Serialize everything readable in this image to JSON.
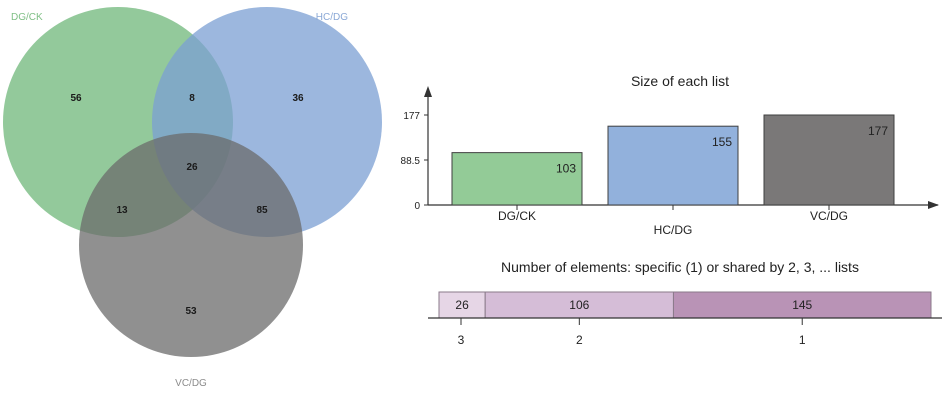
{
  "venn": {
    "sets": [
      {
        "name": "DG/CK",
        "size": 103,
        "color": "#6fb77a",
        "label_color": "#7fbf85"
      },
      {
        "name": "HC/DG",
        "size": 155,
        "color": "#7b9fd3",
        "label_color": "#8aa8d6"
      },
      {
        "name": "VC/DG",
        "size": 177,
        "color": "#6b6b6b",
        "label_color": "#8c8c8c"
      }
    ],
    "regions": [
      {
        "sets": [
          "DG/CK"
        ],
        "value": 56
      },
      {
        "sets": [
          "HC/DG"
        ],
        "value": 36
      },
      {
        "sets": [
          "VC/DG"
        ],
        "value": 53
      },
      {
        "sets": [
          "DG/CK",
          "HC/DG"
        ],
        "value": 8
      },
      {
        "sets": [
          "DG/CK",
          "VC/DG"
        ],
        "value": 13
      },
      {
        "sets": [
          "HC/DG",
          "VC/DG"
        ],
        "value": 85
      },
      {
        "sets": [
          "DG/CK",
          "HC/DG",
          "VC/DG"
        ],
        "value": 26
      }
    ]
  },
  "chart_data": [
    {
      "type": "bar",
      "title": "Size of each list",
      "categories": [
        "DG/CK",
        "HC/DG",
        "VC/DG"
      ],
      "values": [
        103,
        155,
        177
      ],
      "colors": [
        "#93cb97",
        "#92b1dc",
        "#7a7878"
      ],
      "yticks": [
        "0",
        "88.5",
        "177"
      ],
      "ylim": [
        0,
        177
      ]
    },
    {
      "type": "bar",
      "title": "Number of elements: specific (1) or shared by 2, 3, ... lists",
      "orientation": "horizontal-stacked",
      "categories": [
        "3",
        "2",
        "1"
      ],
      "values": [
        26,
        106,
        145
      ],
      "colors": [
        "#e6d6e6",
        "#d5bdd7",
        "#b993b6"
      ]
    }
  ]
}
